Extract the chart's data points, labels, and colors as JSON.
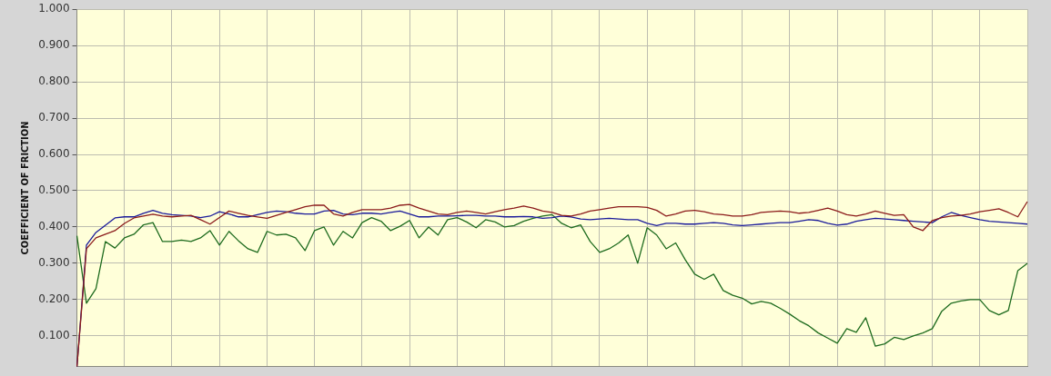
{
  "chart_data": {
    "type": "line",
    "ylabel": "COEFFICIENT OF FRICTION",
    "categories": [
      null,
      null,
      null,
      null,
      null,
      null,
      null,
      null,
      null,
      null,
      null,
      null,
      null,
      null,
      null,
      null,
      null,
      null,
      null,
      null,
      null,
      null,
      null,
      null,
      null,
      null,
      null,
      null,
      null,
      null,
      null,
      null,
      null,
      null,
      null,
      null,
      null,
      null,
      null,
      null,
      null,
      null,
      null,
      null,
      null,
      null,
      null,
      null,
      null,
      null,
      null,
      null,
      null,
      null,
      null,
      null,
      null,
      null,
      null,
      null,
      null,
      null,
      null,
      null,
      null,
      null,
      null,
      null,
      null,
      null,
      null,
      null,
      null,
      null,
      null,
      null,
      null,
      null,
      null,
      null,
      null,
      null,
      null,
      null,
      null,
      null,
      null,
      null,
      null,
      null,
      null,
      null,
      null,
      null,
      null,
      null,
      null,
      null,
      null,
      null,
      null
    ],
    "ylim": [
      0.015,
      1
    ],
    "yticks": [
      {
        "value": 0.1,
        "label": "0.100"
      },
      {
        "value": 0.2,
        "label": "0.200"
      },
      {
        "value": 0.3,
        "label": "0.300"
      },
      {
        "value": 0.4,
        "label": "0.400"
      },
      {
        "value": 0.5,
        "label": "0.500"
      },
      {
        "value": 0.6,
        "label": "0.600"
      },
      {
        "value": 0.7,
        "label": "0.700"
      },
      {
        "value": 0.8,
        "label": "0.800"
      },
      {
        "value": 0.9,
        "label": "0.900"
      },
      {
        "value": 1,
        "label": "1.000"
      }
    ],
    "grid": true,
    "tick_labels": "y",
    "line_style": "solid",
    "series": [
      {
        "color": "#8b1a1a",
        "values": [
          0.015,
          0.34,
          0.37,
          0.38,
          0.39,
          0.41,
          0.425,
          0.43,
          0.435,
          0.43,
          0.428,
          0.43,
          0.432,
          0.42,
          0.408,
          0.426,
          0.444,
          0.438,
          0.432,
          0.428,
          0.424,
          0.432,
          0.44,
          0.448,
          0.456,
          0.46,
          0.46,
          0.436,
          0.43,
          0.44,
          0.448,
          0.448,
          0.448,
          0.452,
          0.46,
          0.462,
          0.452,
          0.444,
          0.436,
          0.434,
          0.44,
          0.444,
          0.44,
          0.436,
          0.442,
          0.448,
          0.452,
          0.458,
          0.452,
          0.444,
          0.44,
          0.432,
          0.43,
          0.436,
          0.444,
          0.448,
          0.452,
          0.456,
          0.456,
          0.456,
          0.454,
          0.446,
          0.43,
          0.436,
          0.444,
          0.446,
          0.442,
          0.436,
          0.434,
          0.43,
          0.43,
          0.434,
          0.44,
          0.442,
          0.444,
          0.442,
          0.438,
          0.44,
          0.446,
          0.452,
          0.444,
          0.434,
          0.43,
          0.436,
          0.444,
          0.438,
          0.432,
          0.434,
          0.4,
          0.39,
          0.418,
          0.426,
          0.43,
          0.432,
          0.436,
          0.442,
          0.446,
          0.45,
          0.44,
          0.428,
          0.47
        ]
      },
      {
        "color": "#1a1a9a",
        "values": [
          0.015,
          0.35,
          0.385,
          0.405,
          0.425,
          0.428,
          0.428,
          0.438,
          0.446,
          0.438,
          0.434,
          0.432,
          0.43,
          0.426,
          0.43,
          0.442,
          0.436,
          0.428,
          0.428,
          0.434,
          0.44,
          0.444,
          0.442,
          0.438,
          0.436,
          0.436,
          0.444,
          0.446,
          0.436,
          0.434,
          0.438,
          0.438,
          0.436,
          0.44,
          0.444,
          0.436,
          0.428,
          0.428,
          0.43,
          0.43,
          0.431,
          0.432,
          0.432,
          0.43,
          0.43,
          0.428,
          0.428,
          0.429,
          0.428,
          0.424,
          0.426,
          0.43,
          0.428,
          0.422,
          0.42,
          0.422,
          0.424,
          0.422,
          0.42,
          0.42,
          0.41,
          0.404,
          0.41,
          0.41,
          0.408,
          0.408,
          0.41,
          0.412,
          0.41,
          0.406,
          0.404,
          0.406,
          0.408,
          0.41,
          0.412,
          0.412,
          0.416,
          0.42,
          0.418,
          0.41,
          0.405,
          0.408,
          0.416,
          0.42,
          0.424,
          0.422,
          0.42,
          0.418,
          0.416,
          0.414,
          0.412,
          0.428,
          0.44,
          0.432,
          0.426,
          0.42,
          0.416,
          0.414,
          0.412,
          0.41,
          0.408
        ]
      },
      {
        "color": "#1e6b1e",
        "values": [
          0.376,
          0.19,
          0.23,
          0.36,
          0.342,
          0.37,
          0.38,
          0.406,
          0.412,
          0.36,
          0.36,
          0.364,
          0.36,
          0.37,
          0.39,
          0.35,
          0.388,
          0.362,
          0.34,
          0.33,
          0.388,
          0.378,
          0.38,
          0.37,
          0.335,
          0.39,
          0.4,
          0.35,
          0.388,
          0.37,
          0.412,
          0.426,
          0.416,
          0.39,
          0.402,
          0.418,
          0.37,
          0.4,
          0.378,
          0.42,
          0.426,
          0.414,
          0.398,
          0.42,
          0.414,
          0.4,
          0.404,
          0.416,
          0.424,
          0.43,
          0.434,
          0.41,
          0.398,
          0.406,
          0.36,
          0.33,
          0.34,
          0.356,
          0.378,
          0.3,
          0.398,
          0.378,
          0.34,
          0.356,
          0.31,
          0.27,
          0.256,
          0.27,
          0.225,
          0.212,
          0.204,
          0.188,
          0.195,
          0.19,
          0.176,
          0.16,
          0.142,
          0.128,
          0.108,
          0.094,
          0.08,
          0.12,
          0.11,
          0.15,
          0.072,
          0.078,
          0.096,
          0.09,
          0.1,
          0.108,
          0.12,
          0.168,
          0.19,
          0.196,
          0.2,
          0.2,
          0.17,
          0.158,
          0.17,
          0.28,
          0.3
        ]
      }
    ]
  }
}
